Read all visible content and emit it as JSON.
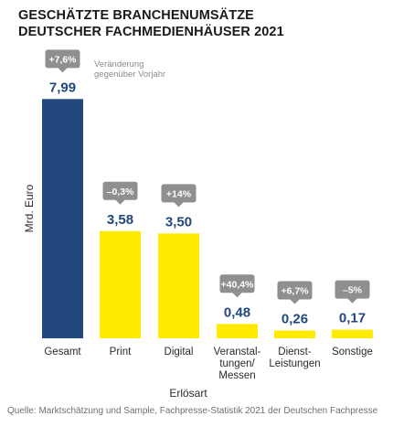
{
  "chart_data": {
    "type": "bar",
    "title": [
      "GESCHÄTZTE BRANCHENUMSÄTZE",
      "DEUTSCHER FACHMEDIENHÄUSER 2021"
    ],
    "ylabel": "Mrd. Euro",
    "xlabel": "Erlösart",
    "categories": [
      [
        "Gesamt"
      ],
      [
        "Print"
      ],
      [
        "Digital"
      ],
      [
        "Veranstal-",
        "tungen/",
        "Messen"
      ],
      [
        "Dienst-",
        "Leistungen"
      ],
      [
        "Sonstige"
      ]
    ],
    "values": [
      7.99,
      3.58,
      3.5,
      0.48,
      0.26,
      0.17
    ],
    "value_labels": [
      "7,99",
      "3,58",
      "3,50",
      "0,48",
      "0,26",
      "0,17"
    ],
    "changes": [
      "+7,6%",
      "–0,3%",
      "+14%",
      "+40,4%",
      "+6,7%",
      "–5%"
    ],
    "change_legend": [
      "Veränderung",
      "gegenüber Vorjahr"
    ],
    "ylim": [
      0,
      8
    ],
    "colors": {
      "total_bar": "#21477e",
      "segment_bar": "#ffea00",
      "value_text": "#21477e",
      "change_badge": "#8f8f8f",
      "change_text": "#ffffff"
    }
  },
  "source": "Quelle: Marktschätzung und Sample, Fachpresse-Statistik 2021 der Deutschen Fachpresse"
}
